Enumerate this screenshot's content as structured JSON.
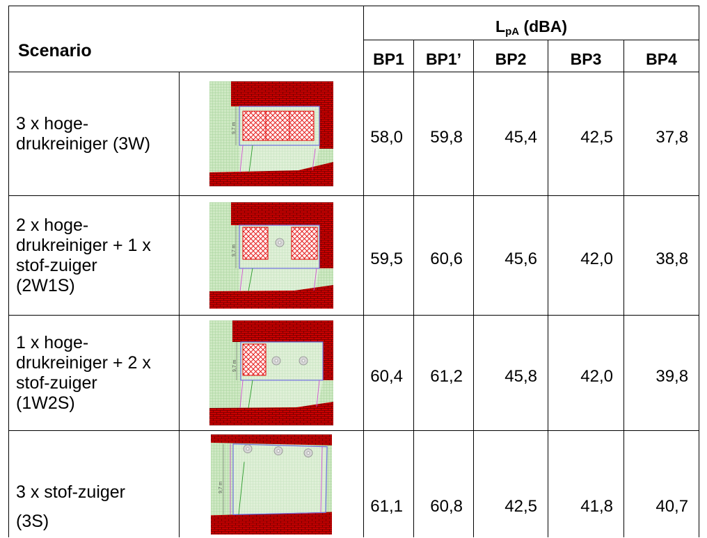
{
  "header": {
    "scenario": "Scenario",
    "lpa_symbol": "L",
    "lpa_subscript": "pA",
    "lpa_unit": "(dBA)",
    "columns": [
      "BP1",
      "BP1’",
      "BP2",
      "BP3",
      "BP4"
    ]
  },
  "rows": [
    {
      "lines": [
        "3 x hoge-",
        "drukreiniger (3W)"
      ],
      "map": {
        "dimension_label": "9,7 m",
        "pressure_washers": 3,
        "vacuum_cleaners": 0
      },
      "values": [
        "58,0",
        "59,8",
        "45,4",
        "42,5",
        "37,8"
      ]
    },
    {
      "lines": [
        "2 x hoge-",
        "drukreiniger + 1 x",
        "stof-zuiger",
        "(2W1S)"
      ],
      "map": {
        "dimension_label": "9,7 m",
        "pressure_washers": 2,
        "vacuum_cleaners": 1
      },
      "values": [
        "59,5",
        "60,6",
        "45,6",
        "42,0",
        "38,8"
      ]
    },
    {
      "lines": [
        "1 x hoge-",
        "drukreiniger + 2 x",
        "stof-zuiger",
        "(1W2S)"
      ],
      "map": {
        "dimension_label": "9,7 m",
        "pressure_washers": 1,
        "vacuum_cleaners": 2
      },
      "values": [
        "60,4",
        "61,2",
        "45,8",
        "42,0",
        "39,8"
      ]
    },
    {
      "lines": [
        "3 x stof-zuiger",
        "(3S)"
      ],
      "map": {
        "dimension_label": "9,7 m",
        "pressure_washers": 0,
        "vacuum_cleaners": 3
      },
      "values": [
        "61,1",
        "60,8",
        "42,5",
        "41,8",
        "40,7"
      ]
    }
  ],
  "colors": {
    "table_border": "#000000",
    "brick": "#c80000",
    "brick_mortar": "#6e0000",
    "grass": "#cfe9c4",
    "grass_grid": "#a8d49c",
    "washer_hatch": "#e00000",
    "building_outline": "#6f6fe0",
    "boundary_line": "#d050d0",
    "vacuum_icon": "#d6d6d6"
  }
}
